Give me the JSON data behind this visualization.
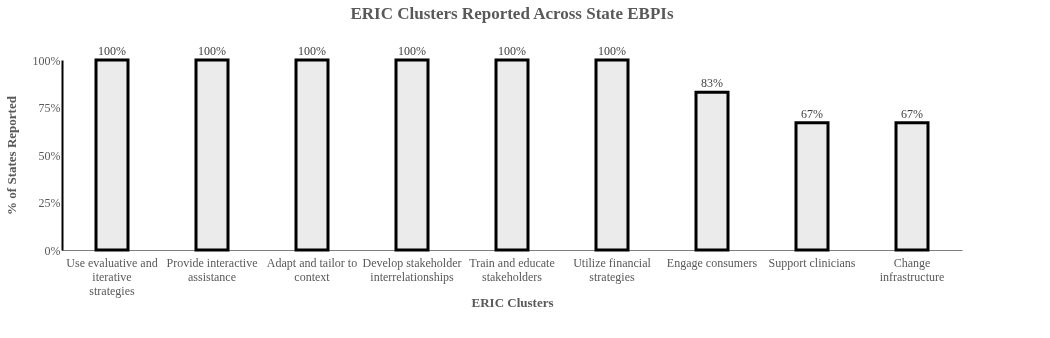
{
  "chart_data": {
    "type": "bar",
    "title": "ERIC Clusters Reported Across State EBPIs",
    "xlabel": "ERIC Clusters",
    "ylabel": "% of States Reported",
    "categories": [
      "Use evaluative and iterative strategies",
      "Provide interactive assistance",
      "Adapt and tailor to context",
      "Develop stakeholder interrelationships",
      "Train and educate stakeholders",
      "Utilize financial strategies",
      "Engage consumers",
      "Support clinicians",
      "Change infrastructure"
    ],
    "values": [
      100,
      100,
      100,
      100,
      100,
      100,
      83,
      67,
      67
    ],
    "value_labels": [
      "100%",
      "100%",
      "100%",
      "100%",
      "100%",
      "100%",
      "83%",
      "67%",
      "67%"
    ],
    "color": "#ebebeb",
    "ylim": [
      0,
      100
    ],
    "yticks": [
      {
        "value": 0,
        "label": "0%"
      },
      {
        "value": 25,
        "label": "25%"
      },
      {
        "value": 50,
        "label": "50%"
      },
      {
        "value": 75,
        "label": "75%"
      },
      {
        "value": 100,
        "label": "100%"
      }
    ],
    "grid": false
  }
}
